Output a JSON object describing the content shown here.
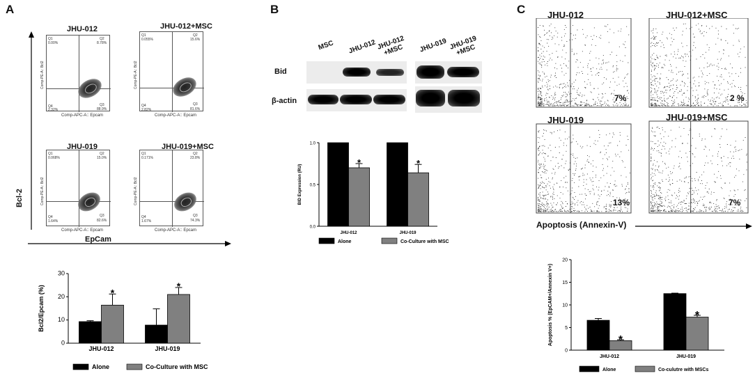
{
  "panels": {
    "a": {
      "letter": "A",
      "y_axis": "Bcl-2",
      "x_axis": "EpCam",
      "plots": [
        {
          "title": "JHU-012",
          "q1": "0.00%",
          "q2": "8.78%",
          "q3": "88.9%",
          "q4": "2.32%"
        },
        {
          "title": "JHU-012+MSC",
          "q1": "0.055%",
          "q2": "15.6%",
          "q3": "81.6%",
          "q4": "2.82%"
        },
        {
          "title": "JHU-019",
          "q1": "0.068%",
          "q2": "15.0%",
          "q3": "82.6%",
          "q4": "1.64%"
        },
        {
          "title": "JHU-019+MSC",
          "q1": "0.171%",
          "q2": "23.8%",
          "q3": "74.3%",
          "q4": "1.67%"
        }
      ],
      "plot_y_label": "Comp-PE-A:: Bcl2",
      "plot_x_label": "Comp-APC-A:: Epcam"
    },
    "b": {
      "letter": "B",
      "lanes": [
        "MSC",
        "JHU-012",
        "JHU-012 +MSC",
        "JHU-019",
        "JHU-019 +MSC"
      ],
      "bid_label": "Bid",
      "actin_label": "β-actin"
    },
    "c": {
      "letter": "C",
      "plots": [
        {
          "title": "JHU-012",
          "pct": "7%"
        },
        {
          "title": "JHU-012+MSC",
          "pct": "2 %"
        },
        {
          "title": "JHU-019",
          "pct": "13%"
        },
        {
          "title": "JHU-019+MSC",
          "pct": "7%"
        }
      ],
      "x_axis": "Apoptosis (Annexin-V)"
    }
  },
  "colors": {
    "alone": "#000000",
    "coculture": "#808080"
  },
  "chart_data": [
    {
      "type": "bar",
      "panel": "A",
      "categories": [
        "JHU-012",
        "JHU-019"
      ],
      "series": [
        {
          "name": "Alone",
          "values": [
            9.3,
            7.8
          ],
          "errors": [
            0.4,
            7.0
          ]
        },
        {
          "name": "Co-Culture with MSC",
          "values": [
            16.4,
            21.0
          ],
          "errors": [
            4.8,
            3.0
          ]
        }
      ],
      "significant": [
        false,
        true
      ],
      "ylabel": "Bcl2/Epcam (%)",
      "ylim": [
        0,
        30
      ],
      "yticks": [
        "0",
        "10",
        "20",
        "30"
      ]
    },
    {
      "type": "bar",
      "panel": "B",
      "categories": [
        "JHU-012",
        "JHU-019"
      ],
      "series": [
        {
          "name": "Alone",
          "values": [
            1.0,
            1.0
          ],
          "errors": [
            0,
            0
          ]
        },
        {
          "name": "Co-Culture with MSC",
          "values": [
            0.7,
            0.64
          ],
          "errors": [
            0.05,
            0.1
          ]
        }
      ],
      "significant": [
        false,
        true
      ],
      "ylabel": "BID Expression (RU)",
      "ylim": [
        0,
        1.0
      ],
      "yticks": [
        "0.0",
        "0.5",
        "1.0"
      ]
    },
    {
      "type": "bar",
      "panel": "C",
      "categories": [
        "JHU-012",
        "JHU-019"
      ],
      "series": [
        {
          "name": "Alone",
          "values": [
            6.6,
            12.5
          ],
          "errors": [
            0.4,
            0.1
          ]
        },
        {
          "name": "Co-culutre with MSCs",
          "values": [
            2.1,
            7.3
          ],
          "errors": [
            0.2,
            0.4
          ]
        }
      ],
      "significant": [
        false,
        true
      ],
      "ylabel": "Apoptosis % (EpCAM+/Annexin V+)",
      "ylim": [
        0,
        20
      ],
      "yticks": [
        "0",
        "5",
        "10",
        "15",
        "20"
      ]
    }
  ]
}
